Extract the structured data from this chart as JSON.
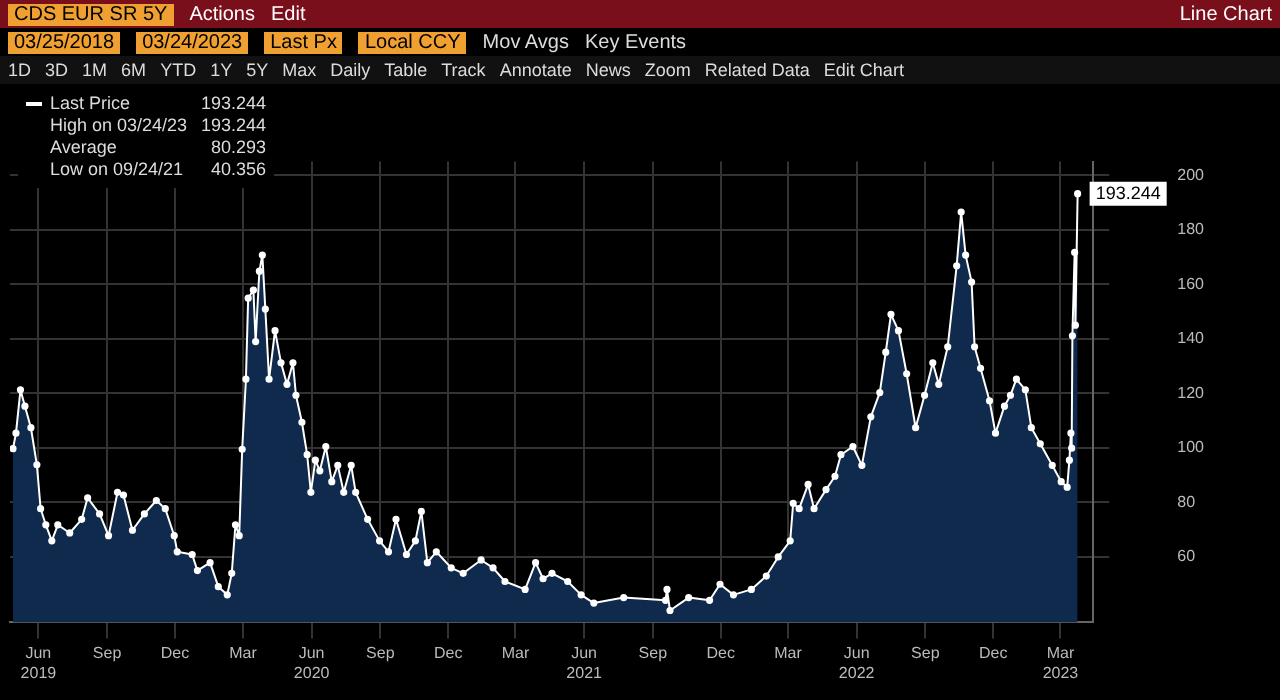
{
  "chart_data": {
    "type": "area",
    "title": "CDS EUR SR 5Y",
    "x": [
      "2019-04-28",
      "2019-05-02",
      "2019-05-08",
      "2019-05-14",
      "2019-05-22",
      "2019-05-30",
      "2019-06-04",
      "2019-06-11",
      "2019-06-19",
      "2019-06-27",
      "2019-07-13",
      "2019-07-29",
      "2019-08-06",
      "2019-08-22",
      "2019-09-03",
      "2019-09-15",
      "2019-09-23",
      "2019-10-05",
      "2019-10-21",
      "2019-11-06",
      "2019-11-18",
      "2019-11-30",
      "2019-12-04",
      "2019-12-24",
      "2019-12-31",
      "2020-01-17",
      "2020-01-28",
      "2020-02-09",
      "2020-02-15",
      "2020-02-20",
      "2020-02-25",
      "2020-02-29",
      "2020-03-05",
      "2020-03-08",
      "2020-03-15",
      "2020-03-18",
      "2020-03-23",
      "2020-03-27",
      "2020-03-31",
      "2020-04-05",
      "2020-04-13",
      "2020-04-21",
      "2020-04-29",
      "2020-05-07",
      "2020-05-11",
      "2020-05-19",
      "2020-05-26",
      "2020-05-31",
      "2020-06-06",
      "2020-06-12",
      "2020-06-20",
      "2020-06-28",
      "2020-07-06",
      "2020-07-14",
      "2020-07-24",
      "2020-07-30",
      "2020-08-15",
      "2020-08-31",
      "2020-09-12",
      "2020-09-22",
      "2020-10-06",
      "2020-10-18",
      "2020-10-26",
      "2020-11-03",
      "2020-11-15",
      "2020-12-05",
      "2020-12-21",
      "2021-01-14",
      "2021-01-30",
      "2021-02-15",
      "2021-03-14",
      "2021-03-28",
      "2021-04-07",
      "2021-04-19",
      "2021-05-10",
      "2021-05-28",
      "2021-06-14",
      "2021-07-24",
      "2021-09-18",
      "2021-09-20",
      "2021-09-24",
      "2021-10-19",
      "2021-11-16",
      "2021-11-30",
      "2021-12-18",
      "2022-01-11",
      "2022-01-31",
      "2022-02-16",
      "2022-03-04",
      "2022-03-08",
      "2022-03-16",
      "2022-03-28",
      "2022-04-05",
      "2022-04-21",
      "2022-05-03",
      "2022-05-11",
      "2022-05-27",
      "2022-06-08",
      "2022-06-20",
      "2022-07-02",
      "2022-07-10",
      "2022-07-17",
      "2022-07-27",
      "2022-08-07",
      "2022-08-19",
      "2022-08-31",
      "2022-09-11",
      "2022-09-19",
      "2022-10-01",
      "2022-10-13",
      "2022-10-19",
      "2022-10-25",
      "2022-11-02",
      "2022-11-06",
      "2022-11-14",
      "2022-11-26",
      "2022-12-04",
      "2022-12-16",
      "2022-12-24",
      "2023-01-01",
      "2023-01-13",
      "2023-01-21",
      "2023-02-02",
      "2023-02-18",
      "2023-03-02",
      "2023-03-10",
      "2023-03-13",
      "2023-03-15",
      "2023-03-16",
      "2023-03-17",
      "2023-03-20",
      "2023-03-21",
      "2023-03-24"
    ],
    "series": [
      {
        "name": "Last Price",
        "color": "#0f2a4d",
        "values": [
          99.7,
          105.4,
          121.3,
          115.3,
          107.4,
          93.8,
          77.7,
          71.8,
          65.9,
          71.8,
          68.8,
          73.8,
          81.7,
          75.8,
          67.8,
          83.7,
          82.7,
          69.8,
          75.8,
          80.7,
          77.7,
          67.8,
          61.9,
          60.9,
          55.0,
          57.9,
          49.1,
          46.1,
          54.0,
          71.8,
          67.8,
          99.5,
          125.2,
          154.9,
          157.9,
          139.0,
          164.8,
          170.7,
          150.9,
          125.2,
          143.0,
          131.2,
          123.3,
          131.2,
          119.3,
          109.4,
          97.5,
          83.7,
          95.5,
          91.6,
          100.5,
          87.6,
          93.6,
          83.7,
          93.6,
          83.7,
          73.8,
          65.9,
          61.9,
          73.8,
          60.9,
          65.9,
          76.7,
          57.9,
          61.9,
          56.0,
          54.0,
          58.9,
          56.0,
          51.0,
          48.1,
          57.9,
          52.0,
          54.0,
          51.0,
          46.1,
          43.1,
          45.1,
          44.1,
          48.1,
          40.356,
          45.1,
          44.1,
          50.0,
          46.1,
          48.1,
          53.0,
          60.0,
          65.9,
          79.7,
          77.7,
          86.6,
          77.7,
          84.7,
          89.6,
          97.5,
          100.5,
          93.6,
          111.4,
          120.3,
          135.1,
          149.0,
          143.0,
          127.2,
          107.4,
          119.3,
          131.2,
          123.3,
          137.1,
          166.8,
          186.5,
          170.7,
          160.8,
          137.1,
          129.2,
          117.3,
          105.4,
          115.3,
          119.3,
          125.2,
          121.3,
          107.4,
          101.5,
          93.6,
          87.6,
          85.6,
          95.5,
          105.4,
          99.9,
          141.1,
          171.7,
          145.0,
          193.244
        ]
      }
    ],
    "xlim": [
      "2019-04-24",
      "2023-04-14"
    ],
    "xticks": [
      {
        "value": "2019-06-01",
        "label": "Jun 2019"
      },
      {
        "value": "2019-09-01",
        "label": "Sep"
      },
      {
        "value": "2019-12-01",
        "label": "Dec"
      },
      {
        "value": "2020-03-01",
        "label": "Mar"
      },
      {
        "value": "2020-06-01",
        "label": "Jun 2020"
      },
      {
        "value": "2020-09-01",
        "label": "Sep"
      },
      {
        "value": "2020-12-01",
        "label": "Dec"
      },
      {
        "value": "2021-03-01",
        "label": "Mar"
      },
      {
        "value": "2021-06-01",
        "label": "Jun 2021"
      },
      {
        "value": "2021-09-01",
        "label": "Sep"
      },
      {
        "value": "2021-12-01",
        "label": "Dec"
      },
      {
        "value": "2022-03-01",
        "label": "Mar"
      },
      {
        "value": "2022-06-01",
        "label": "Jun 2022"
      },
      {
        "value": "2022-09-01",
        "label": "Sep"
      },
      {
        "value": "2022-12-01",
        "label": "Dec"
      },
      {
        "value": "2023-03-01",
        "label": "Mar 2023"
      }
    ],
    "ylim": [
      36,
      205
    ],
    "yticks": [
      60,
      80,
      100,
      120,
      140,
      160,
      180,
      200
    ],
    "grid": true,
    "legend": "top left",
    "marker": "circle",
    "line_style": "solid",
    "annotations": [
      "High on 03/24/23 193.244",
      "Average 80.293",
      "Low on 09/24/21 40.356",
      {
        "text": "193.244",
        "x": "2023-03-24",
        "y": 193.244
      },
      "Actions",
      "Edit",
      "Line Chart",
      "03/25/2018",
      "03/24/2023",
      "Last Px",
      "Local CCY",
      "Mov Avgs",
      "Key Events",
      "1D",
      "3D",
      "1M",
      "6M",
      "YTD",
      "1Y",
      "5Y",
      "Max",
      "Daily",
      "Table",
      "Track",
      "Annotate",
      "News",
      "Zoom",
      "Related Data",
      "Edit Chart"
    ]
  }
}
